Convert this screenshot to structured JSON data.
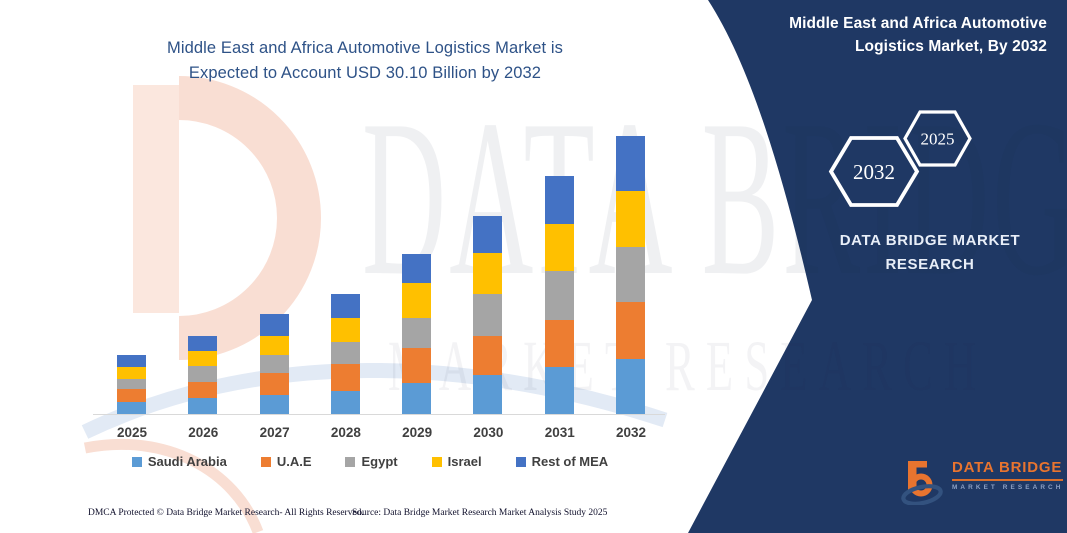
{
  "page": {
    "background": "#ffffff",
    "panel_color": "#1F3864",
    "axis_color": "#d9d9d9"
  },
  "chart": {
    "title_lines": [
      "Middle East and Africa Automotive Logistics Market is",
      "Expected to Account USD 30.10 Billion by 2032"
    ],
    "title_color": "#2E5287"
  },
  "chart_data": {
    "type": "bar",
    "subtype": "stacked-vertical",
    "title": "Middle East and Africa Automotive Logistics Market is Expected to Account USD 30.10 Billion by 2032",
    "unit": "USD Billion (estimated from bar heights; no value axis shown)",
    "categories": [
      "2025",
      "2026",
      "2027",
      "2028",
      "2029",
      "2030",
      "2031",
      "2032"
    ],
    "series": [
      {
        "name": "Saudi Arabia",
        "color": "#5B9BD5",
        "values": [
          1.3,
          1.7,
          2.1,
          2.5,
          3.4,
          4.2,
          5.1,
          6.0
        ]
      },
      {
        "name": "U.A.E",
        "color": "#ED7D31",
        "values": [
          1.4,
          1.8,
          2.3,
          2.9,
          3.7,
          4.3,
          5.1,
          6.1
        ]
      },
      {
        "name": "Egypt",
        "color": "#A5A5A5",
        "values": [
          1.1,
          1.7,
          2.0,
          2.4,
          3.3,
          4.5,
          5.3,
          6.0
        ]
      },
      {
        "name": "Israel",
        "color": "#FFC000",
        "values": [
          1.3,
          1.6,
          2.1,
          2.6,
          3.8,
          4.4,
          5.1,
          6.1
        ]
      },
      {
        "name": "Rest of MEA",
        "color": "#4472C4",
        "values": [
          1.3,
          1.7,
          2.3,
          2.6,
          3.1,
          4.0,
          5.2,
          5.9
        ]
      }
    ],
    "totals": [
      6.4,
      8.5,
      10.8,
      13.0,
      17.3,
      21.4,
      25.8,
      30.1
    ],
    "ylim": [
      0,
      30.1
    ],
    "grid": false,
    "value_axis_visible": false,
    "legend_position": "bottom"
  },
  "watermark": {
    "line1": "DATA BRIDGE",
    "line2": "MARKET RESEARCH"
  },
  "panel": {
    "title_lines": [
      "Middle East and Africa Automotive",
      "Logistics Market, By 2032"
    ],
    "hexagons": [
      {
        "label": "2032"
      },
      {
        "label": "2025"
      }
    ],
    "caption_lines": [
      "DATA BRIDGE MARKET",
      "RESEARCH"
    ],
    "logo": {
      "name": "DATA BRIDGE",
      "tagline": "MARKET RESEARCH"
    }
  },
  "footer": {
    "dmca": "DMCA Protected © Data Bridge Market Research-  All Rights Reserved.",
    "source": "Source: Data Bridge Market Research  Market Analysis Study 2025"
  }
}
